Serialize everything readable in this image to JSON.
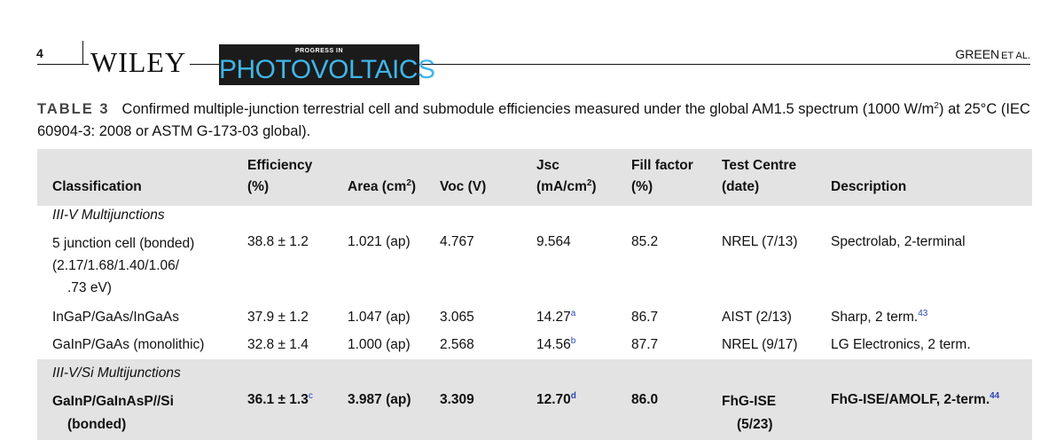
{
  "header": {
    "page_number": "4",
    "publisher": "WILEY",
    "journal_small": "PROGRESS IN",
    "journal_big": "PHOTOVOLTAICS",
    "running_author": "GREEN",
    "running_author_suffix": "ET AL."
  },
  "caption": {
    "label": "TABLE 3",
    "text_a": "Confirmed multiple-junction terrestrial cell and submodule efficiencies measured under the global AM1.5 spectrum (1000 W/m",
    "text_sup": "2",
    "text_b": ") at 25°C (IEC 60904-3: 2008 or ASTM G-173-03 global)."
  },
  "table": {
    "headers": {
      "classification": "Classification",
      "efficiency_1": "Efficiency",
      "efficiency_2": "(%)",
      "area": "Area (cm",
      "area_sup": "2",
      "area_close": ")",
      "voc": "Voc (V)",
      "jsc_1": "Jsc",
      "jsc_2": "(mA/cm",
      "jsc_sup": "2",
      "jsc_close": ")",
      "ff_1": "Fill factor",
      "ff_2": "(%)",
      "tc_1": "Test Centre",
      "tc_2": "(date)",
      "description": "Description"
    },
    "group1": "III-V Multijunctions",
    "row1": {
      "classification_1": "5 junction cell (bonded)",
      "classification_2": "(2.17/1.68/1.40/1.06/",
      "classification_3": ".73 eV)",
      "efficiency": "38.8 ± 1.2",
      "area": "1.021 (ap)",
      "voc": "4.767",
      "jsc": "9.564",
      "ff": "85.2",
      "test_centre": "NREL (7/13)",
      "description": "Spectrolab, 2-terminal"
    },
    "row2": {
      "classification": "InGaP/GaAs/InGaAs",
      "efficiency": "37.9 ± 1.2",
      "area": "1.047 (ap)",
      "voc": "3.065",
      "jsc": "14.27",
      "jsc_note": "a",
      "ff": "86.7",
      "test_centre": "AIST (2/13)",
      "description": "Sharp, 2 term.",
      "description_ref": "43"
    },
    "row3": {
      "classification": "GaInP/GaAs (monolithic)",
      "efficiency": "32.8 ± 1.4",
      "area": "1.000 (ap)",
      "voc": "2.568",
      "jsc": "14.56",
      "jsc_note": "b",
      "ff": "87.7",
      "test_centre": "NREL (9/17)",
      "description": "LG Electronics, 2 term."
    },
    "group2": "III-V/Si Multijunctions",
    "row4": {
      "classification_1": "GaInP/GaInAsP//Si",
      "classification_2": "(bonded)",
      "efficiency": "36.1 ± 1.3",
      "efficiency_note": "c",
      "area": "3.987 (ap)",
      "voc": "3.309",
      "jsc": "12.70",
      "jsc_note": "d",
      "ff": "86.0",
      "test_centre_1": "FhG-ISE",
      "test_centre_2": "(5/23)",
      "description": "FhG-ISE/AMOLF, 2-term.",
      "description_ref": "44"
    }
  }
}
